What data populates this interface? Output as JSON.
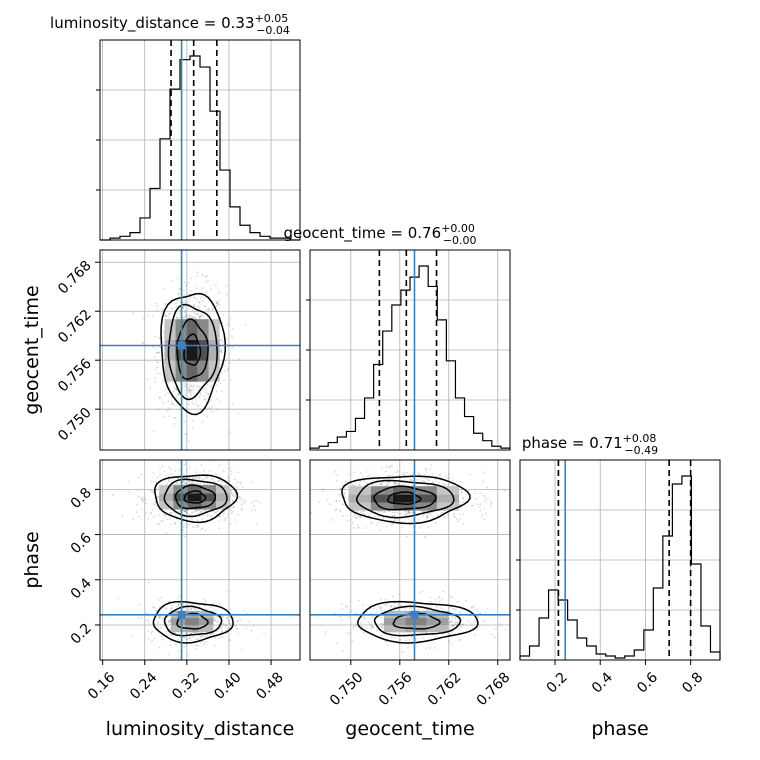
{
  "chart_data": {
    "type": "corner",
    "parameters": [
      {
        "name": "luminosity_distance",
        "axis_label": "luminosity_distance",
        "title": {
          "main": "luminosity_distance = 0.33",
          "sup": "+0.05",
          "sub": "−0.04"
        },
        "range": [
          0.155,
          0.535
        ],
        "ticks": [
          0.16,
          0.24,
          0.32,
          0.4,
          0.48
        ],
        "tick_labels": [
          "0.16",
          "0.24",
          "0.32",
          "0.40",
          "0.48"
        ],
        "injection": 0.31,
        "quantiles": [
          0.29,
          0.333,
          0.377
        ],
        "hist_counts": [
          0,
          1,
          2,
          4,
          12,
          28,
          55,
          82,
          98,
          100,
          94,
          70,
          38,
          18,
          8,
          4,
          2,
          1,
          1,
          0
        ]
      },
      {
        "name": "geocent_time",
        "axis_label": "geocent_time",
        "title": {
          "main": "geocent_time = 0.76",
          "sup": "+0.00",
          "sub": "−0.00"
        },
        "range": [
          0.745,
          0.7695
        ],
        "ticks": [
          0.75,
          0.756,
          0.762,
          0.768
        ],
        "tick_labels": [
          "0.750",
          "0.756",
          "0.762",
          "0.768"
        ],
        "injection": 0.7578,
        "quantiles": [
          0.7535,
          0.7568,
          0.7605
        ],
        "hist_counts": [
          1,
          2,
          4,
          7,
          10,
          17,
          28,
          46,
          64,
          78,
          86,
          93,
          99,
          88,
          70,
          48,
          28,
          18,
          9,
          5,
          2,
          1
        ]
      },
      {
        "name": "phase",
        "axis_label": "phase",
        "title": {
          "main": "phase = 0.71",
          "sup": "+0.08",
          "sub": "−0.49"
        },
        "range": [
          0.045,
          0.93
        ],
        "ticks": [
          0.2,
          0.4,
          0.6,
          0.8
        ],
        "tick_labels": [
          "0.2",
          "0.4",
          "0.6",
          "0.8"
        ],
        "injection": 0.245,
        "quantiles": [
          0.215,
          0.705,
          0.8
        ],
        "hist_counts": [
          2,
          7,
          21,
          35,
          30,
          20,
          11,
          7,
          3,
          2,
          1,
          2,
          5,
          15,
          36,
          62,
          88,
          92,
          48,
          17,
          4
        ]
      }
    ],
    "panels": [
      {
        "x": "luminosity_distance",
        "y": "geocent_time",
        "modes": [
          {
            "cx": 0.33,
            "cy": 0.7572,
            "sx": 0.028,
            "sy": 0.0034,
            "w": 1.0
          }
        ]
      },
      {
        "x": "luminosity_distance",
        "y": "phase",
        "modes": [
          {
            "cx": 0.335,
            "cy": 0.765,
            "sx": 0.036,
            "sy": 0.048,
            "w": 1.0
          },
          {
            "cx": 0.33,
            "cy": 0.215,
            "sx": 0.036,
            "sy": 0.042,
            "w": 0.5
          }
        ]
      },
      {
        "x": "geocent_time",
        "y": "phase",
        "modes": [
          {
            "cx": 0.7565,
            "cy": 0.76,
            "sx": 0.0036,
            "sy": 0.048,
            "w": 1.0
          },
          {
            "cx": 0.758,
            "cy": 0.215,
            "sx": 0.0035,
            "sy": 0.042,
            "w": 0.5
          }
        ]
      }
    ],
    "colors": {
      "histogram": "#000000",
      "injection": "#3f7fbf",
      "quantile": "#000000",
      "grid": "#b0b0b0",
      "samples": "#555555"
    },
    "grid": true
  }
}
